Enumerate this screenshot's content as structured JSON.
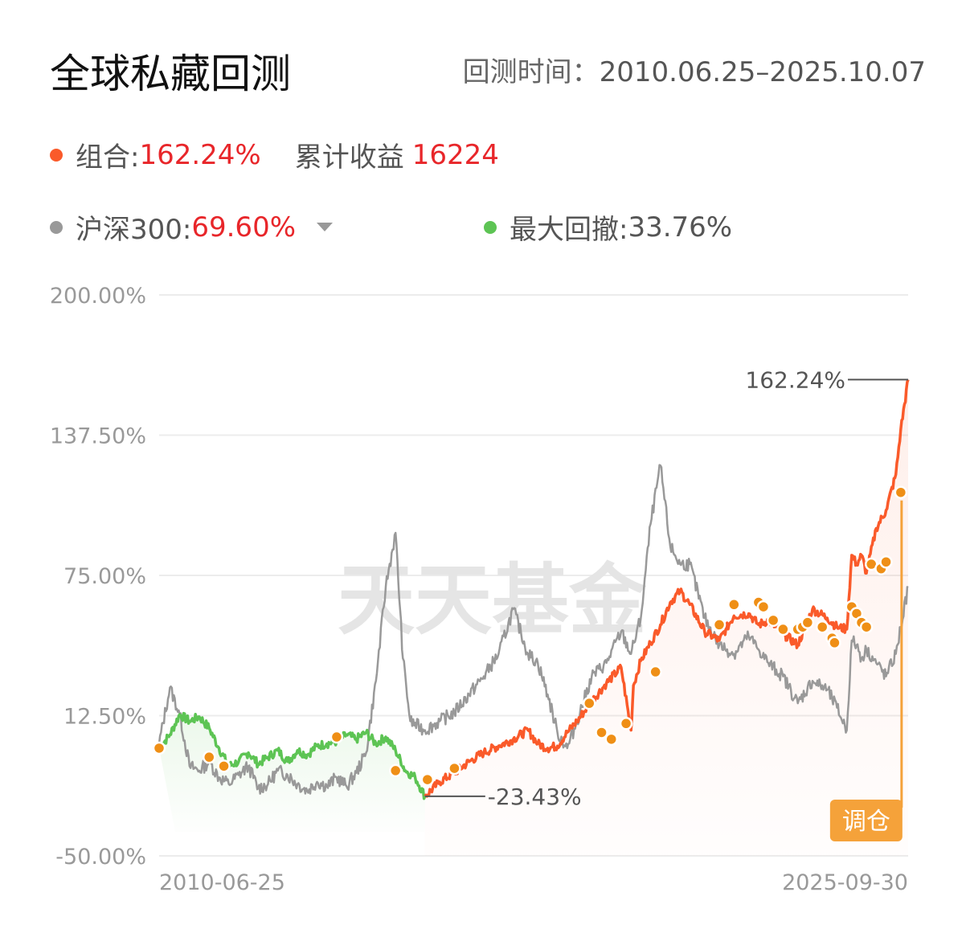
{
  "header": {
    "title": "全球私藏回测",
    "period_label": "回测时间：",
    "period_value": "2010.06.25–2025.10.07"
  },
  "legend": {
    "portfolio_label": "组合:",
    "portfolio_value": "162.24%",
    "cumulative_label": "累计收益",
    "cumulative_value": "16224",
    "benchmark_label": "沪深300:",
    "benchmark_value": "69.60%",
    "drawdown_label": "最大回撤:",
    "drawdown_value": "33.76%"
  },
  "colors": {
    "portfolio": "#fa5a2a",
    "benchmark": "#999999",
    "drawdown": "#5dc454",
    "positive_value": "#e8262a",
    "rebalance_marker": "#ef8f16",
    "rebalance_button": "#f5a23a"
  },
  "watermark": "天天基金",
  "rebalance_button_label": "调仓",
  "chart_data": {
    "type": "line",
    "y_ticks": [
      "200.00%",
      "137.50%",
      "75.00%",
      "12.50%",
      "-50.00%"
    ],
    "ylim": [
      -50,
      200
    ],
    "x_ticks": [
      "2010-06-25",
      "2025-09-30"
    ],
    "xlim": [
      2010.48,
      2025.75
    ],
    "annotations": [
      {
        "label": "162.24%",
        "x": 2025.75,
        "y": 162.24
      },
      {
        "label": "-23.43%",
        "x": 2015.9,
        "y": -23.43
      }
    ],
    "series": [
      {
        "name": "组合",
        "x": [
          2010.48,
          2010.7,
          2010.9,
          2011.1,
          2011.3,
          2011.5,
          2011.7,
          2011.9,
          2012.1,
          2012.3,
          2012.5,
          2012.7,
          2012.9,
          2013.1,
          2013.3,
          2013.5,
          2013.7,
          2013.9,
          2014.1,
          2014.3,
          2014.5,
          2014.7,
          2014.9,
          2015.1,
          2015.3,
          2015.5,
          2015.7,
          2015.9,
          2016.2,
          2016.5,
          2016.8,
          2017.1,
          2017.4,
          2017.7,
          2018.0,
          2018.2,
          2018.4,
          2018.6,
          2018.8,
          2019.0,
          2019.3,
          2019.6,
          2019.9,
          2020.1,
          2020.15,
          2020.3,
          2020.5,
          2020.7,
          2020.9,
          2021.1,
          2021.3,
          2021.6,
          2021.9,
          2022.2,
          2022.5,
          2022.7,
          2022.9,
          2023.2,
          2023.5,
          2023.8,
          2024.1,
          2024.3,
          2024.5,
          2024.6,
          2024.7,
          2024.8,
          2024.9,
          2025.1,
          2025.3,
          2025.5,
          2025.6,
          2025.75
        ],
        "values": [
          -2,
          4,
          13,
          10,
          12,
          7,
          -2,
          -10,
          -8,
          -4,
          -9,
          -6,
          -3,
          -8,
          -3,
          -5,
          -1,
          0,
          1,
          4,
          2,
          5,
          0,
          3,
          -3,
          -12,
          -15,
          -23.43,
          -17,
          -13,
          -8,
          -4,
          -1,
          2,
          6,
          0,
          -2,
          -1,
          5,
          10,
          19,
          27,
          34,
          6,
          26,
          37,
          45,
          53,
          63,
          68,
          62,
          50,
          46,
          57,
          58,
          53,
          55,
          49,
          44,
          60,
          56,
          52,
          51,
          84,
          80,
          84,
          76,
          96,
          104,
          120,
          140,
          162.24
        ]
      },
      {
        "name": "沪深300",
        "x": [
          2010.48,
          2010.7,
          2010.9,
          2011.1,
          2011.3,
          2011.5,
          2011.7,
          2011.9,
          2012.1,
          2012.3,
          2012.5,
          2012.7,
          2012.9,
          2013.1,
          2013.3,
          2013.5,
          2013.7,
          2013.9,
          2014.1,
          2014.3,
          2014.5,
          2014.7,
          2014.9,
          2015.1,
          2015.3,
          2015.45,
          2015.6,
          2015.9,
          2016.2,
          2016.5,
          2016.8,
          2017.1,
          2017.4,
          2017.7,
          2018.0,
          2018.2,
          2018.4,
          2018.6,
          2018.8,
          2019.0,
          2019.3,
          2019.6,
          2019.9,
          2020.1,
          2020.3,
          2020.5,
          2020.7,
          2020.9,
          2021.1,
          2021.3,
          2021.6,
          2021.9,
          2022.2,
          2022.5,
          2022.7,
          2022.9,
          2023.2,
          2023.5,
          2023.8,
          2024.1,
          2024.3,
          2024.5,
          2024.6,
          2024.7,
          2024.8,
          2024.9,
          2025.1,
          2025.3,
          2025.5,
          2025.6,
          2025.75
        ],
        "values": [
          0,
          25,
          13,
          -10,
          -12,
          -8,
          -15,
          -18,
          -14,
          -10,
          -20,
          -18,
          -12,
          -14,
          -18,
          -21,
          -17,
          -19,
          -15,
          -19,
          -13,
          -4,
          28,
          70,
          94,
          38,
          10,
          6,
          10,
          14,
          22,
          30,
          40,
          60,
          40,
          36,
          22,
          5,
          -2,
          10,
          30,
          36,
          50,
          40,
          56,
          98,
          124,
          88,
          80,
          80,
          56,
          44,
          40,
          48,
          42,
          36,
          30,
          18,
          28,
          24,
          16,
          6,
          46,
          44,
          38,
          42,
          36,
          30,
          40,
          52,
          69.6
        ]
      }
    ],
    "drawdown_period": [
      "2010.06",
      "2015.9"
    ],
    "rebalance_points": [
      [
        2010.48,
        -2
      ],
      [
        2011.5,
        -6
      ],
      [
        2011.8,
        -10
      ],
      [
        2014.1,
        3
      ],
      [
        2015.3,
        -12
      ],
      [
        2015.95,
        -16
      ],
      [
        2016.5,
        -11
      ],
      [
        2019.25,
        18
      ],
      [
        2019.5,
        5
      ],
      [
        2019.7,
        2
      ],
      [
        2020.0,
        9
      ],
      [
        2020.6,
        32
      ],
      [
        2021.9,
        53
      ],
      [
        2022.2,
        62
      ],
      [
        2022.7,
        63
      ],
      [
        2022.8,
        61
      ],
      [
        2023.0,
        55
      ],
      [
        2023.2,
        51
      ],
      [
        2023.5,
        51
      ],
      [
        2023.6,
        52
      ],
      [
        2023.7,
        54
      ],
      [
        2024.0,
        52
      ],
      [
        2024.2,
        47
      ],
      [
        2024.25,
        45
      ],
      [
        2024.6,
        61
      ],
      [
        2024.7,
        58
      ],
      [
        2024.8,
        54
      ],
      [
        2024.9,
        52
      ],
      [
        2025.0,
        80
      ],
      [
        2025.2,
        78
      ],
      [
        2025.3,
        81
      ],
      [
        2025.6,
        112
      ]
    ]
  }
}
